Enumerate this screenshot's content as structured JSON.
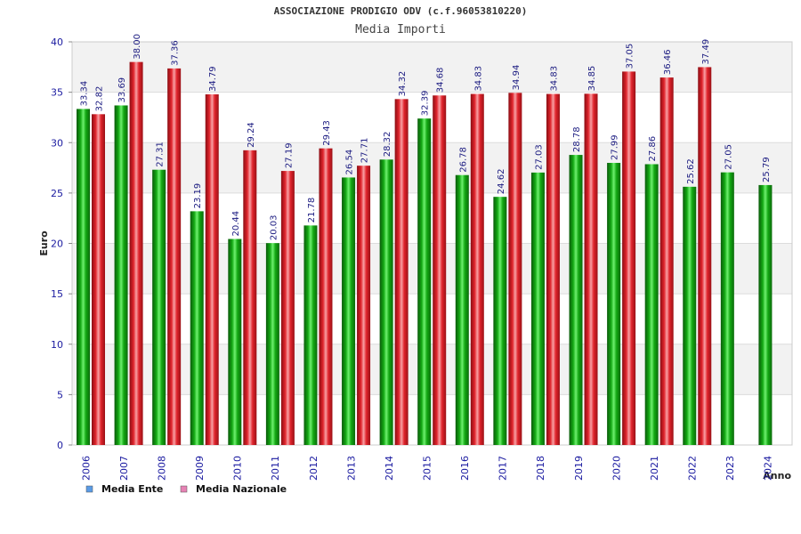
{
  "chart_data": {
    "type": "bar",
    "title": "ASSOCIAZIONE PRODIGIO ODV (c.f.96053810220)",
    "subtitle": "Media Importi",
    "ylabel": "Euro",
    "xlabel": "Anno",
    "ylim": [
      0,
      40
    ],
    "yticks": [
      0,
      5,
      10,
      15,
      20,
      25,
      30,
      35,
      40
    ],
    "grid": true,
    "legend_position": "bottom-left",
    "categories": [
      "2006",
      "2007",
      "2008",
      "2009",
      "2010",
      "2011",
      "2012",
      "2013",
      "2014",
      "2015",
      "2016",
      "2017",
      "2018",
      "2019",
      "2020",
      "2021",
      "2022",
      "2023",
      "2024"
    ],
    "series": [
      {
        "name": "Media Ente",
        "color": "#00b400",
        "legend_color": "#5a9be6",
        "values": [
          33.34,
          33.69,
          27.31,
          23.19,
          20.44,
          20.03,
          21.78,
          26.54,
          28.32,
          32.39,
          26.78,
          24.62,
          27.03,
          28.78,
          27.99,
          27.86,
          25.62,
          27.05,
          25.79
        ]
      },
      {
        "name": "Media Nazionale",
        "color": "#e61e28",
        "legend_color": "#e682b4",
        "values": [
          32.82,
          38.0,
          37.36,
          34.79,
          29.24,
          27.19,
          29.43,
          27.71,
          34.32,
          34.68,
          34.83,
          34.94,
          34.83,
          34.85,
          37.05,
          36.46,
          37.49,
          null,
          null
        ]
      }
    ],
    "value_labels": [
      [
        "33.34",
        "33.69",
        "27.31",
        "23.19",
        "20.44",
        "20.03",
        "21.78",
        "26.54",
        "28.32",
        "32.39",
        "26.78",
        "24.62",
        "27.03",
        "28.78",
        "27.99",
        "27.86",
        "25.62",
        "27.05",
        "25.79"
      ],
      [
        "32.82",
        "38.00",
        "37.36",
        "34.79",
        "29.24",
        "27.19",
        "29.43",
        "27.71",
        "34.32",
        "34.68",
        "34.83",
        "34.94",
        "34.83",
        "34.85",
        "37.05",
        "36.46",
        "37.49",
        null,
        null
      ]
    ]
  }
}
